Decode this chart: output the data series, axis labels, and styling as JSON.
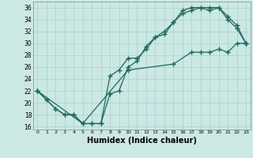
{
  "xlabel": "Humidex (Indice chaleur)",
  "xlim": [
    -0.5,
    23.5
  ],
  "ylim": [
    15.5,
    37.0
  ],
  "yticks": [
    16,
    18,
    20,
    22,
    24,
    26,
    28,
    30,
    32,
    34,
    36
  ],
  "xticks": [
    0,
    1,
    2,
    3,
    4,
    5,
    6,
    7,
    8,
    9,
    10,
    11,
    12,
    13,
    14,
    15,
    16,
    17,
    18,
    19,
    20,
    21,
    22,
    23
  ],
  "bg_color": "#cce8e4",
  "line_color": "#1a6b5a",
  "grid_color": "#aad4d0",
  "line1_x": [
    0,
    1,
    2,
    3,
    4,
    5,
    6,
    7,
    8,
    9,
    10,
    11,
    12,
    13,
    14,
    15,
    16,
    17,
    18,
    19,
    20,
    21,
    22,
    23
  ],
  "line1_y": [
    22,
    20.5,
    19,
    18,
    18,
    16.5,
    16.5,
    16.5,
    21.5,
    22,
    26,
    27,
    29.5,
    31,
    31.5,
    33.5,
    35.5,
    36,
    36,
    35.5,
    36,
    34,
    32.5,
    30
  ],
  "line2_x": [
    0,
    1,
    2,
    3,
    4,
    5,
    6,
    7,
    8,
    9,
    10,
    11,
    12,
    13,
    14,
    15,
    16,
    17,
    18,
    19,
    20,
    21,
    22,
    23
  ],
  "line2_y": [
    22,
    20.5,
    19,
    18,
    18,
    16.5,
    16.5,
    16.5,
    24.5,
    25.5,
    27.5,
    27.5,
    29.0,
    31.0,
    32.0,
    33.5,
    35.0,
    35.5,
    36.0,
    36.0,
    36.0,
    34.5,
    33.0,
    30
  ],
  "line3_x": [
    0,
    5,
    10,
    15,
    17,
    18,
    19,
    20,
    21,
    22,
    23
  ],
  "line3_y": [
    22,
    16.5,
    25.5,
    26.5,
    28.5,
    28.5,
    28.5,
    29.0,
    28.5,
    30.0,
    30
  ]
}
